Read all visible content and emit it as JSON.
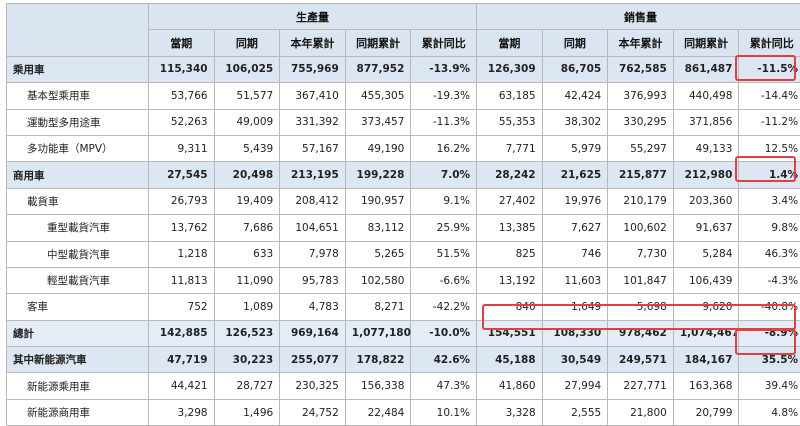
{
  "headers": {
    "group_production": "生產量",
    "group_sales": "銷售量",
    "cols": [
      "當期",
      "同期",
      "本年累計",
      "同期累計",
      "累計同比",
      "當期",
      "同期",
      "本年累計",
      "同期累計",
      "累計同比"
    ]
  },
  "rows": [
    {
      "label": "乘用車",
      "cells": [
        "115,340",
        "106,025",
        "755,969",
        "877,952",
        "-13.9%",
        "126,309",
        "86,705",
        "762,585",
        "861,487",
        "-11.5%"
      ]
    },
    {
      "label": "基本型乘用車",
      "cells": [
        "53,766",
        "51,577",
        "367,410",
        "455,305",
        "-19.3%",
        "63,185",
        "42,424",
        "376,993",
        "440,498",
        "-14.4%"
      ]
    },
    {
      "label": "運動型多用途車",
      "cells": [
        "52,263",
        "49,009",
        "331,392",
        "373,457",
        "-11.3%",
        "55,353",
        "38,302",
        "330,295",
        "371,856",
        "-11.2%"
      ]
    },
    {
      "label": "多功能車（MPV）",
      "cells": [
        "9,311",
        "5,439",
        "57,167",
        "49,190",
        "16.2%",
        "7,771",
        "5,979",
        "55,297",
        "49,133",
        "12.5%"
      ]
    },
    {
      "label": "商用車",
      "cells": [
        "27,545",
        "20,498",
        "213,195",
        "199,228",
        "7.0%",
        "28,242",
        "21,625",
        "215,877",
        "212,980",
        "1.4%"
      ]
    },
    {
      "label": "載貨車",
      "cells": [
        "26,793",
        "19,409",
        "208,412",
        "190,957",
        "9.1%",
        "27,402",
        "19,976",
        "210,179",
        "203,360",
        "3.4%"
      ]
    },
    {
      "label": "重型載貨汽車",
      "cells": [
        "13,762",
        "7,686",
        "104,651",
        "83,112",
        "25.9%",
        "13,385",
        "7,627",
        "100,602",
        "91,637",
        "9.8%"
      ]
    },
    {
      "label": "中型載貨汽車",
      "cells": [
        "1,218",
        "633",
        "7,978",
        "5,265",
        "51.5%",
        "825",
        "746",
        "7,730",
        "5,284",
        "46.3%"
      ]
    },
    {
      "label": "輕型載貨汽車",
      "cells": [
        "11,813",
        "11,090",
        "95,783",
        "102,580",
        "-6.6%",
        "13,192",
        "11,603",
        "101,847",
        "106,439",
        "-4.3%"
      ]
    },
    {
      "label": "客車",
      "cells": [
        "752",
        "1,089",
        "4,783",
        "8,271",
        "-42.2%",
        "840",
        "1,649",
        "5,698",
        "9,620",
        "-40.8%"
      ]
    },
    {
      "label": "總計",
      "cells": [
        "142,885",
        "126,523",
        "969,164",
        "1,077,180",
        "-10.0%",
        "154,551",
        "108,330",
        "978,462",
        "1,074,467",
        "-8.9%"
      ]
    },
    {
      "label": "其中新能源汽車",
      "cells": [
        "47,719",
        "30,223",
        "255,077",
        "178,822",
        "42.6%",
        "45,188",
        "30,549",
        "249,571",
        "184,167",
        "35.5%"
      ]
    },
    {
      "label": "新能源乘用車",
      "cells": [
        "44,421",
        "28,727",
        "230,325",
        "156,338",
        "47.3%",
        "41,860",
        "27,994",
        "227,771",
        "163,368",
        "39.4%"
      ]
    },
    {
      "label": "新能源商用車",
      "cells": [
        "3,298",
        "1,496",
        "24,752",
        "22,484",
        "10.1%",
        "3,328",
        "2,555",
        "21,800",
        "20,799",
        "4.8%"
      ]
    }
  ],
  "colors": {
    "header_bg": "#dbe5f1",
    "band_bg": "#dde6f3",
    "highlight": "#e04040",
    "border": "#b9b9b9"
  }
}
